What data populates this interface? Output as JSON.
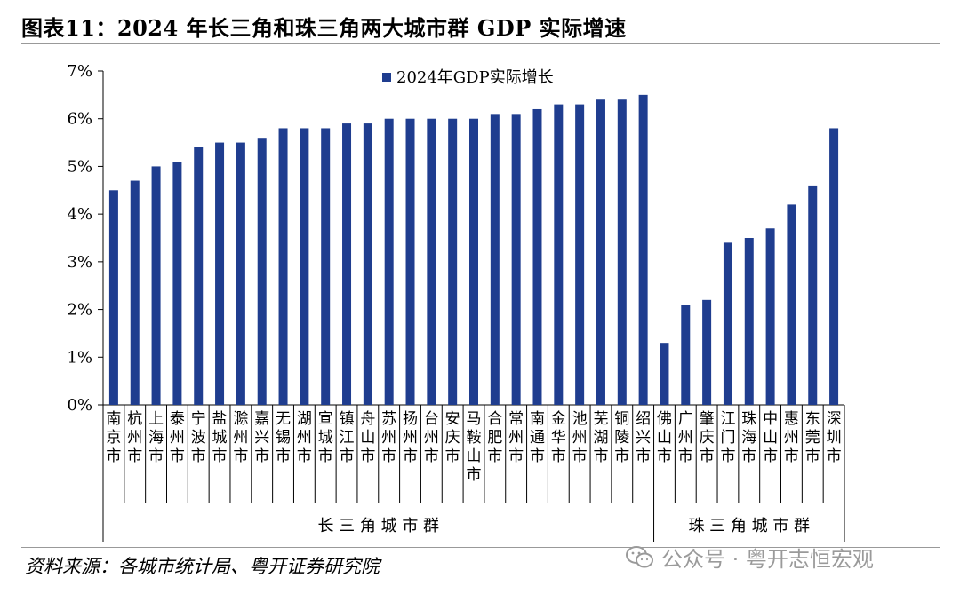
{
  "title": "图表11：2024 年长三角和珠三角两大城市群 GDP 实际增速",
  "source": "资料来源：各城市统计局、粤开证券研究院",
  "watermark": {
    "text": "公众号 · 粤开志恒宏观",
    "icon": "wechat-icon"
  },
  "colors": {
    "bar": "#1f3d8f"
  },
  "chart_data": {
    "type": "bar",
    "title": "图表11：2024 年长三角和珠三角两大城市群 GDP 实际增速",
    "legend": {
      "label": "2024年GDP实际增长",
      "position": "top-center"
    },
    "ylim": [
      0,
      7
    ],
    "y_ticks": [
      "0%",
      "1%",
      "2%",
      "3%",
      "4%",
      "5%",
      "6%",
      "7%"
    ],
    "categories": [
      "南京市",
      "杭州市",
      "上海市",
      "泰州市",
      "宁波市",
      "盐城市",
      "滁州市",
      "嘉兴市",
      "无锡市",
      "湖州市",
      "宣城市",
      "镇江市",
      "舟山市",
      "苏州市",
      "扬州市",
      "台州市",
      "安庆市",
      "马鞍山市",
      "合肥市",
      "常州市",
      "南通市",
      "金华市",
      "池州市",
      "芜湖市",
      "铜陵市",
      "绍兴市",
      "佛山市",
      "广州市",
      "肇庆市",
      "江门市",
      "珠海市",
      "中山市",
      "惠州市",
      "东莞市",
      "深圳市"
    ],
    "series": [
      {
        "name": "2024年GDP实际增长",
        "values": [
          4.5,
          4.7,
          5.0,
          5.1,
          5.4,
          5.5,
          5.5,
          5.6,
          5.8,
          5.8,
          5.8,
          5.9,
          5.9,
          6.0,
          6.0,
          6.0,
          6.0,
          6.0,
          6.1,
          6.1,
          6.2,
          6.3,
          6.3,
          6.4,
          6.4,
          6.5,
          1.3,
          2.1,
          2.2,
          3.4,
          3.5,
          3.7,
          4.2,
          4.6,
          5.8
        ]
      }
    ],
    "groups": [
      {
        "label": "长三角城市群",
        "start": 0,
        "end": 25
      },
      {
        "label": "珠三角城市群",
        "start": 26,
        "end": 34
      }
    ]
  }
}
